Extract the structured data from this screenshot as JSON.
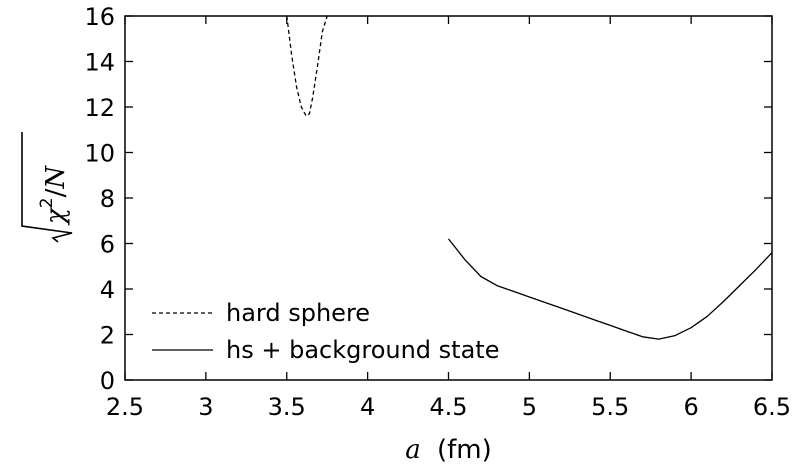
{
  "chart_data": {
    "type": "line",
    "xlabel": "a (fm)",
    "xlabel_var": "a",
    "xlabel_unit": "(fm)",
    "ylabel": "√(χ²/N)",
    "xlim": [
      2.5,
      6.5
    ],
    "ylim": [
      0,
      16
    ],
    "xticks": [
      2.5,
      3,
      3.5,
      4,
      4.5,
      5,
      5.5,
      6,
      6.5
    ],
    "xtick_labels": [
      "2.5",
      "3",
      "3.5",
      "4",
      "4.5",
      "5",
      "5.5",
      "6",
      "6.5"
    ],
    "yticks": [
      0,
      2,
      4,
      6,
      8,
      10,
      12,
      14,
      16
    ],
    "ytick_labels": [
      "0",
      "2",
      "4",
      "6",
      "8",
      "10",
      "12",
      "14",
      "16"
    ],
    "grid": false,
    "legend_position": "bottom-left",
    "series": [
      {
        "name": "hard sphere",
        "style": "dashed",
        "color": "#000000",
        "x": [
          3.5,
          3.53,
          3.56,
          3.59,
          3.62,
          3.64,
          3.66,
          3.69,
          3.72,
          3.75
        ],
        "y": [
          16.0,
          14.3,
          12.9,
          12.0,
          11.6,
          11.7,
          12.4,
          13.8,
          15.3,
          16.0
        ]
      },
      {
        "name": "hs + background state",
        "style": "solid",
        "color": "#000000",
        "x": [
          4.5,
          4.6,
          4.7,
          4.8,
          4.9,
          5.0,
          5.1,
          5.2,
          5.3,
          5.4,
          5.5,
          5.6,
          5.7,
          5.8,
          5.9,
          6.0,
          6.1,
          6.2,
          6.3,
          6.4,
          6.5
        ],
        "y": [
          6.2,
          5.3,
          4.55,
          4.15,
          3.9,
          3.65,
          3.4,
          3.15,
          2.9,
          2.65,
          2.4,
          2.15,
          1.9,
          1.8,
          1.95,
          2.3,
          2.8,
          3.45,
          4.15,
          4.85,
          5.6
        ]
      }
    ]
  }
}
